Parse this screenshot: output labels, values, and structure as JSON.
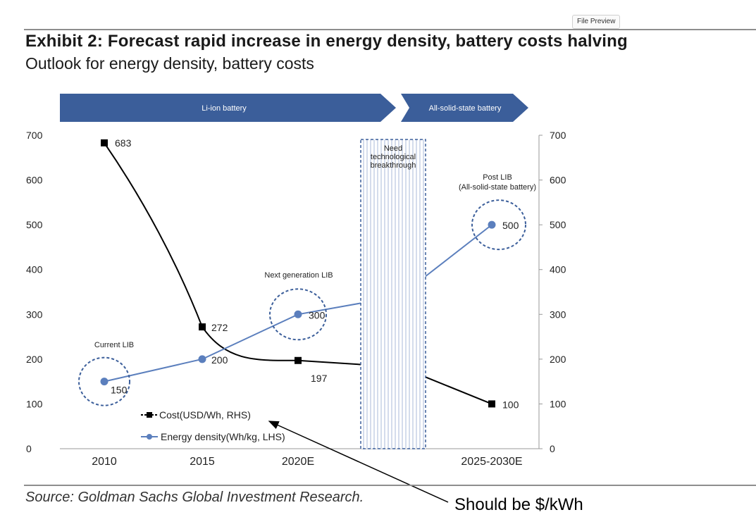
{
  "badge": {
    "label": "File Preview"
  },
  "title": "Exhibit 2: Forecast rapid increase in energy density, battery costs halving",
  "subtitle": "Outlook for energy density, battery costs",
  "source": "Source: Goldman Sachs Global Investment Research.",
  "annotation": "Should be $/kWh",
  "chart_data": {
    "type": "line",
    "categories": [
      "2010",
      "2015",
      "2020E",
      "",
      "2025-2030E"
    ],
    "ylim": [
      0,
      700
    ],
    "yticks": [
      0,
      100,
      200,
      300,
      400,
      500,
      600,
      700
    ],
    "grid": false,
    "legend_position": "bottom-left",
    "series": [
      {
        "name": "Cost(USD/Wh, RHS)",
        "axis": "right",
        "color": "#000000",
        "values": [
          683,
          272,
          197,
          null,
          100
        ],
        "labels": [
          "683",
          "272",
          "197",
          "",
          "100"
        ]
      },
      {
        "name": "Energy density(Wh/kg, LHS)",
        "axis": "left",
        "color": "#5b7fbd",
        "values": [
          150,
          200,
          300,
          null,
          500
        ],
        "labels": [
          "150",
          "200",
          "300",
          "",
          "500"
        ]
      }
    ],
    "phases": [
      {
        "label": "Li-ion  battery",
        "color": "#3b5e9a"
      },
      {
        "label": "All-solid-state battery",
        "color": "#3b5e9a"
      }
    ],
    "gap_box": {
      "label_lines": [
        "Need",
        "technological",
        "breakthrough"
      ]
    },
    "point_annotations": [
      {
        "text": [
          "Current LIB"
        ],
        "at": "2010"
      },
      {
        "text": [
          "Next generation LIB"
        ],
        "at": "2020E"
      },
      {
        "text": [
          "Post LIB",
          "(All-solid-state battery)"
        ],
        "at": "2025-2030E"
      }
    ]
  }
}
